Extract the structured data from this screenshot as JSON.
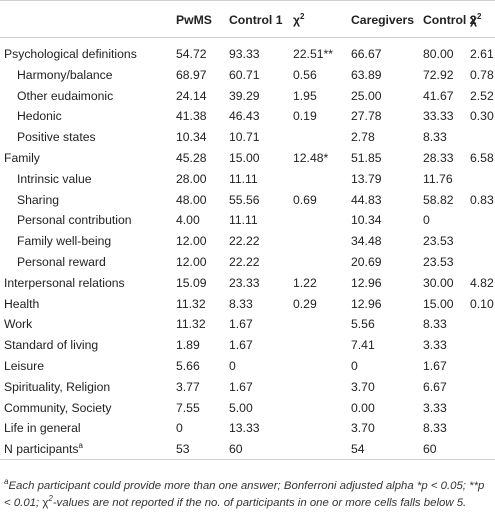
{
  "headers": [
    "",
    "PwMS",
    "Control 1",
    "χ",
    "Caregivers",
    "Control 2",
    "χ"
  ],
  "header_sup": [
    "",
    "",
    "",
    "2",
    "",
    "",
    "2"
  ],
  "rows": [
    {
      "label": "Psychological definitions",
      "sub": false,
      "cells": [
        "54.72",
        "93.33",
        "22.51**",
        "66.67",
        "80.00",
        "2.61"
      ]
    },
    {
      "label": "Harmony/balance",
      "sub": true,
      "cells": [
        "68.97",
        "60.71",
        "0.56",
        "63.89",
        "72.92",
        "0.78"
      ]
    },
    {
      "label": "Other eudaimonic",
      "sub": true,
      "cells": [
        "24.14",
        "39.29",
        "1.95",
        "25.00",
        "41.67",
        "2.52"
      ]
    },
    {
      "label": "Hedonic",
      "sub": true,
      "cells": [
        "41.38",
        "46.43",
        "0.19",
        "27.78",
        "33.33",
        "0.30"
      ]
    },
    {
      "label": "Positive states",
      "sub": true,
      "cells": [
        "10.34",
        "10.71",
        "",
        "2.78",
        "8.33",
        ""
      ]
    },
    {
      "label": "Family",
      "sub": false,
      "cells": [
        "45.28",
        "15.00",
        "12.48*",
        "51.85",
        "28.33",
        "6.58"
      ]
    },
    {
      "label": "Intrinsic value",
      "sub": true,
      "cells": [
        "28.00",
        "11.11",
        "",
        "13.79",
        "11.76",
        ""
      ]
    },
    {
      "label": "Sharing",
      "sub": true,
      "cells": [
        "48.00",
        "55.56",
        "0.69",
        "44.83",
        "58.82",
        "0.83"
      ]
    },
    {
      "label": "Personal contribution",
      "sub": true,
      "cells": [
        "4.00",
        "11.11",
        "",
        "10.34",
        "0",
        ""
      ]
    },
    {
      "label": "Family well-being",
      "sub": true,
      "cells": [
        "12.00",
        "22.22",
        "",
        "34.48",
        "23.53",
        ""
      ]
    },
    {
      "label": "Personal reward",
      "sub": true,
      "cells": [
        "12.00",
        "22.22",
        "",
        "20.69",
        "23.53",
        ""
      ]
    },
    {
      "label": "Interpersonal relations",
      "sub": false,
      "cells": [
        "15.09",
        "23.33",
        "1.22",
        "12.96",
        "30.00",
        "4.82"
      ]
    },
    {
      "label": "Health",
      "sub": false,
      "cells": [
        "11.32",
        "8.33",
        "0.29",
        "12.96",
        "15.00",
        "0.10"
      ]
    },
    {
      "label": "Work",
      "sub": false,
      "cells": [
        "11.32",
        "1.67",
        "",
        "5.56",
        "8.33",
        ""
      ]
    },
    {
      "label": "Standard of living",
      "sub": false,
      "cells": [
        "1.89",
        "1.67",
        "",
        "7.41",
        "3.33",
        ""
      ]
    },
    {
      "label": "Leisure",
      "sub": false,
      "cells": [
        "5.66",
        "0",
        "",
        "0",
        "1.67",
        ""
      ]
    },
    {
      "label": "Spirituality, Religion",
      "sub": false,
      "cells": [
        "3.77",
        "1.67",
        "",
        "3.70",
        "6.67",
        ""
      ]
    },
    {
      "label": "Community, Society",
      "sub": false,
      "cells": [
        "7.55",
        "5.00",
        "",
        "0.00",
        "3.33",
        ""
      ]
    },
    {
      "label": "Life in general",
      "sub": false,
      "cells": [
        "0",
        "13.33",
        "",
        "3.70",
        "8.33",
        ""
      ]
    },
    {
      "label": "N participants",
      "label_sup": "a",
      "sub": false,
      "cells": [
        "53",
        "60",
        "",
        "54",
        "60",
        ""
      ]
    }
  ],
  "footnote": {
    "sup_a": "a",
    "text_a": "Each participant could provide more than one answer; Bonferroni adjusted alpha",
    "sig1": "*p < 0.05; **p < 0.01; ",
    "chi": "χ",
    "chi_sup": "2",
    "text_b": "-values are not reported if the no. of participants in one or more cells falls below 5."
  }
}
